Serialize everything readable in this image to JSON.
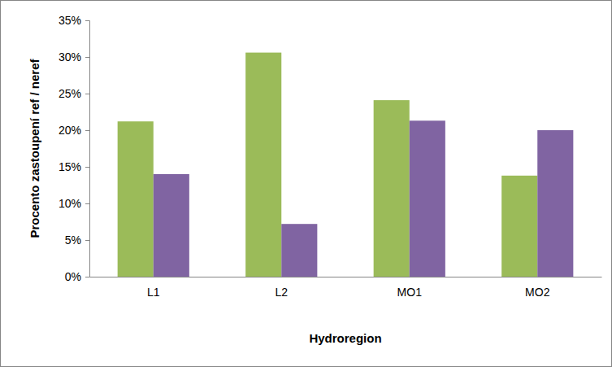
{
  "chart_data": {
    "type": "bar",
    "x_label": "Hydroregion",
    "y_label": "Procento zastoupení ref / neref",
    "categories": [
      "L1",
      "L2",
      "MO1",
      "MO2"
    ],
    "series": [
      {
        "color": "#9bbb59",
        "values": [
          21.2,
          30.6,
          24.1,
          13.8
        ]
      },
      {
        "color": "#8064a2",
        "values": [
          14.0,
          7.2,
          21.3,
          20.0
        ]
      }
    ],
    "ylim": [
      0,
      35
    ],
    "yticks": [
      {
        "value": 0,
        "label": "0%"
      },
      {
        "value": 5,
        "label": "5%"
      },
      {
        "value": 10,
        "label": "10%"
      },
      {
        "value": 15,
        "label": "15%"
      },
      {
        "value": 20,
        "label": "20%"
      },
      {
        "value": 25,
        "label": "25%"
      },
      {
        "value": 30,
        "label": "30%"
      },
      {
        "value": 35,
        "label": "35%"
      }
    ],
    "grid": false
  }
}
